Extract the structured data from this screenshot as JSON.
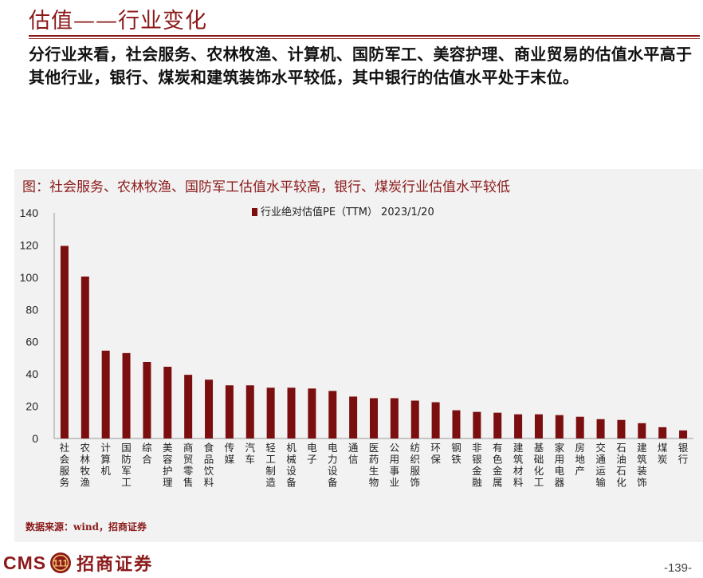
{
  "header": {
    "title": "估值——行业变化"
  },
  "summary": "分行业来看，社会服务、农林牧渔、计算机、国防军工、美容护理、商业贸易的估值水平高于其他行业，银行、煤炭和建筑装饰水平较低，其中银行的估值水平处于末位。",
  "chart": {
    "title": "图：社会服务、农林牧渔、国防军工估值水平较高，银行、煤炭行业估值水平较低",
    "source": "数据来源：wind，招商证券"
  },
  "colors": {
    "bar": "#7b0e0e",
    "accent": "#8b1a1a"
  },
  "chart_data": {
    "type": "bar",
    "categories": [
      "社会服务",
      "农林牧渔",
      "计算机",
      "国防军工",
      "综合",
      "美容护理",
      "商贸零售",
      "食品饮料",
      "传媒",
      "汽车",
      "轻工制造",
      "机械设备",
      "电子",
      "电力设备",
      "通信",
      "医药生物",
      "公用事业",
      "纺织服饰",
      "环保",
      "钢铁",
      "非银金融",
      "有色金属",
      "建筑材料",
      "基础化工",
      "家用电器",
      "房地产",
      "交通运输",
      "石油石化",
      "建筑装饰",
      "煤炭",
      "银行"
    ],
    "series": [
      {
        "name": "行业绝对估值PE（TTM） 2023/1/20",
        "values": [
          119.5,
          100.5,
          54.5,
          53,
          47.5,
          44.5,
          39.5,
          36.5,
          33,
          33,
          31.5,
          31.5,
          31,
          29.5,
          26,
          25,
          25,
          23.5,
          22.5,
          17.5,
          16.5,
          16,
          15,
          15,
          14.5,
          13.5,
          12,
          11.5,
          9.5,
          7,
          5
        ]
      }
    ],
    "ylim": [
      0,
      140
    ],
    "yticks": [
      "0",
      "20",
      "40",
      "60",
      "80",
      "100",
      "120",
      "140"
    ],
    "legend_position": "top-center",
    "grid": false
  },
  "footer": {
    "logo": "CMS",
    "logo_badge": "111",
    "brand": "招商证券",
    "page": "-139-"
  }
}
